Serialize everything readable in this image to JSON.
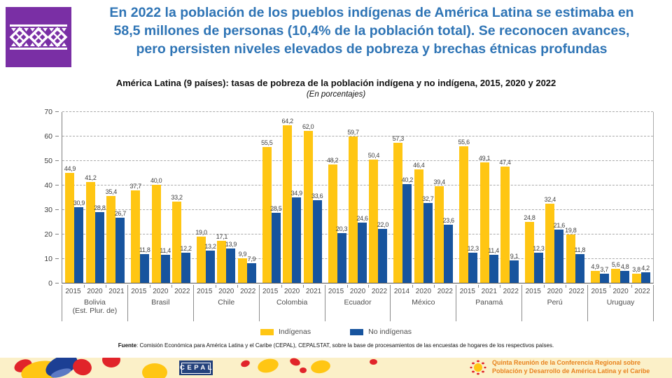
{
  "slide": {
    "title_lines": [
      "En 2022 la población de los pueblos indígenas de América Latina se estimaba en",
      "58,5 millones de personas (10,4% de la población total). Se reconocen avances,",
      "pero persisten niveles elevados de pobreza y brechas étnicas profundas"
    ]
  },
  "palette": {
    "title_blue": "#2E74B5",
    "bar_yellow": "#FFC613",
    "bar_blue": "#17549E",
    "logo_purple": "#7A2FA5",
    "banner_background": "#FBF0C8",
    "banner_text_orange": "#E8821D",
    "cepal_navy": "#24427C"
  },
  "chart_data": {
    "type": "bar",
    "title": "América Latina (9 países): tasas de pobreza de la población indígena y no indígena, 2015, 2020 y 2022",
    "subtitle": "(En porcentajes)",
    "ylabel": "",
    "xlabel": "",
    "ylim": [
      0,
      70
    ],
    "yticks": [
      0,
      10,
      20,
      30,
      40,
      50,
      60,
      70
    ],
    "grid": "horizontal-dashed",
    "legend_position": "bottom",
    "series": [
      {
        "name": "Indígenas",
        "color": "#FFC613"
      },
      {
        "name": "No indígenas",
        "color": "#17549E"
      }
    ],
    "groups": [
      {
        "country_lines": [
          "Bolivia",
          "(Est. Plur. de)"
        ],
        "bars": [
          {
            "year": "2015",
            "indigenas": "44,9",
            "no_indigenas": "30,9"
          },
          {
            "year": "2020",
            "indigenas": "41,2",
            "no_indigenas": "28,8"
          },
          {
            "year": "2021",
            "indigenas": "35,4",
            "no_indigenas": "26,7"
          }
        ]
      },
      {
        "country_lines": [
          "Brasil"
        ],
        "bars": [
          {
            "year": "2015",
            "indigenas": "37,7",
            "no_indigenas": "11,8"
          },
          {
            "year": "2020",
            "indigenas": "40,0",
            "no_indigenas": "11,4"
          },
          {
            "year": "2022",
            "indigenas": "33,2",
            "no_indigenas": "12,2"
          }
        ]
      },
      {
        "country_lines": [
          "Chile"
        ],
        "bars": [
          {
            "year": "2015",
            "indigenas": "19,0",
            "no_indigenas": "13,2"
          },
          {
            "year": "2020",
            "indigenas": "17,1",
            "no_indigenas": "13,9"
          },
          {
            "year": "2022",
            "indigenas": "9,9",
            "no_indigenas": "7,9"
          }
        ]
      },
      {
        "country_lines": [
          "Colombia"
        ],
        "bars": [
          {
            "year": "2015",
            "indigenas": "55,5",
            "no_indigenas": "28,5"
          },
          {
            "year": "2020",
            "indigenas": "64,2",
            "no_indigenas": "34,9"
          },
          {
            "year": "2021",
            "indigenas": "62,0",
            "no_indigenas": "33,6"
          }
        ]
      },
      {
        "country_lines": [
          "Ecuador"
        ],
        "bars": [
          {
            "year": "2015",
            "indigenas": "48,2",
            "no_indigenas": "20,3"
          },
          {
            "year": "2020",
            "indigenas": "59,7",
            "no_indigenas": "24,6"
          },
          {
            "year": "2022",
            "indigenas": "50,4",
            "no_indigenas": "22,0"
          }
        ]
      },
      {
        "country_lines": [
          "México"
        ],
        "bars": [
          {
            "year": "2014",
            "indigenas": "57,3",
            "no_indigenas": "40,2"
          },
          {
            "year": "2020",
            "indigenas": "46,4",
            "no_indigenas": "32,7"
          },
          {
            "year": "2022",
            "indigenas": "39,4",
            "no_indigenas": "23,6"
          }
        ]
      },
      {
        "country_lines": [
          "Panamá"
        ],
        "bars": [
          {
            "year": "2015",
            "indigenas": "55,6",
            "no_indigenas": "12,3"
          },
          {
            "year": "2021",
            "indigenas": "49,1",
            "no_indigenas": "11,4"
          },
          {
            "year": "2022",
            "indigenas": "47,4",
            "no_indigenas": "9,1"
          }
        ]
      },
      {
        "country_lines": [
          "Perú"
        ],
        "bars": [
          {
            "year": "2015",
            "indigenas": "24,8",
            "no_indigenas": "12,3"
          },
          {
            "year": "2020",
            "indigenas": "32,4",
            "no_indigenas": "21,6"
          },
          {
            "year": "2022",
            "indigenas": "19,8",
            "no_indigenas": "11,8"
          }
        ]
      },
      {
        "country_lines": [
          "Uruguay"
        ],
        "bars": [
          {
            "year": "2015",
            "indigenas": "4,9",
            "no_indigenas": "3,7"
          },
          {
            "year": "2020",
            "indigenas": "5,6",
            "no_indigenas": "4,8"
          },
          {
            "year": "2022",
            "indigenas": "3,8",
            "no_indigenas": "4,2"
          }
        ]
      }
    ]
  },
  "source": {
    "label": "Fuente",
    "text": ": Comisión Económica para América Latina y el Caribe (CEPAL), CEPALSTAT, sobre la base de procesamientos de las encuestas de hogares de los respectivos países."
  },
  "footer_banner": {
    "cepal_logo_text": "CEPAL",
    "conference_lines": [
      "Quinta Reunión de la Conferencia Regional sobre",
      "Población y Desarrollo de América Latina y el Caribe"
    ]
  }
}
